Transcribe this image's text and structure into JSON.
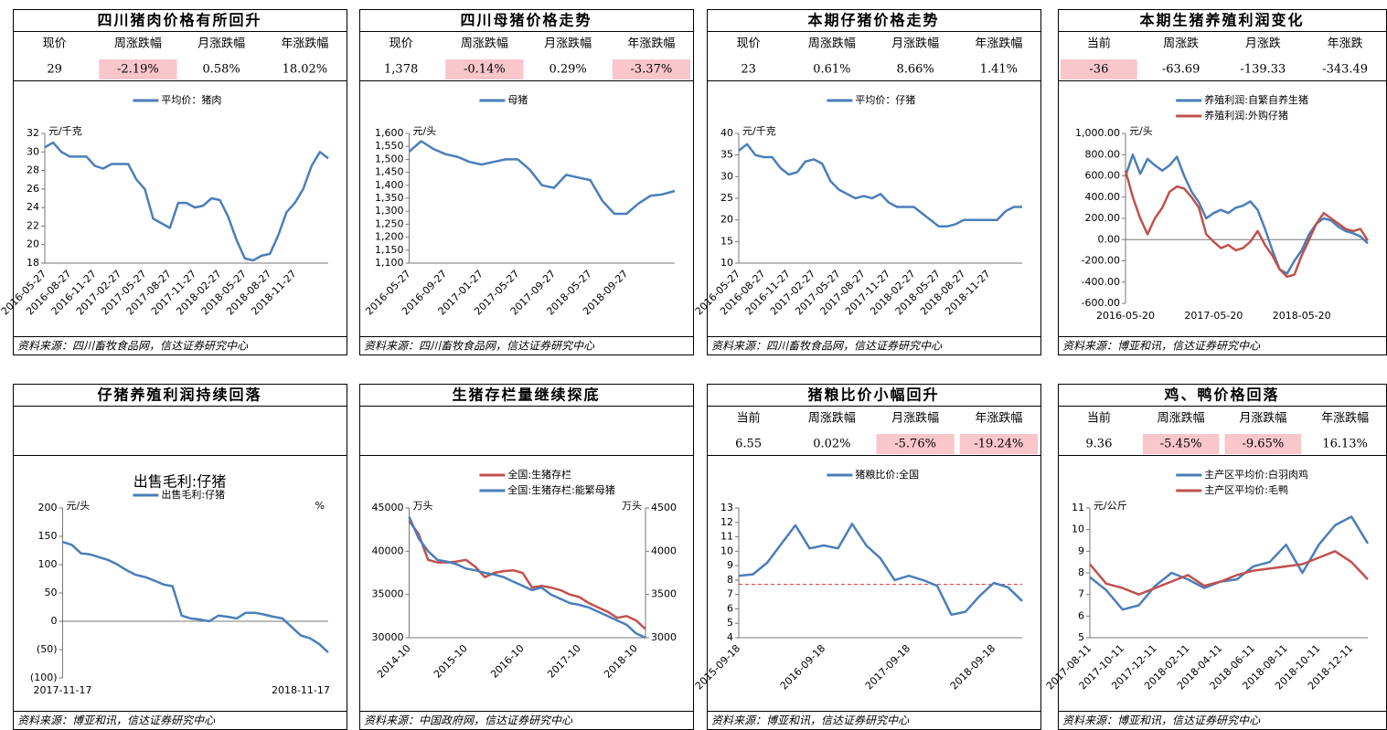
{
  "chart_data": [
    {
      "type": "line",
      "title": "四川猪肉价格有所回升",
      "stats": {
        "headers": [
          "现价",
          "周涨跌幅",
          "月涨跌幅",
          "年涨跌幅"
        ],
        "values": [
          "29",
          "-2.19%",
          "0.58%",
          "18.02%"
        ],
        "highlight": [
          false,
          true,
          false,
          false
        ]
      },
      "yunit": "元/千克",
      "categories": [
        "2016-05-27",
        null,
        null,
        "2016-08-27",
        null,
        null,
        "2016-11-27",
        null,
        null,
        "2017-02-27",
        null,
        null,
        "2017-05-27",
        null,
        null,
        "2017-08-27",
        null,
        null,
        "2017-11-27",
        null,
        null,
        "2018-02-27",
        null,
        null,
        "2018-05-27",
        null,
        null,
        "2018-08-27",
        null,
        null,
        "2018-11-27",
        null,
        null,
        null,
        null
      ],
      "series": [
        {
          "name": "平均价：猪肉",
          "color": "#4a7ebb",
          "values": [
            30.5,
            31,
            30,
            29.5,
            29.5,
            29.5,
            28.5,
            28.2,
            28.7,
            28.7,
            28.7,
            27,
            26,
            22.8,
            22.3,
            21.8,
            24.5,
            24.5,
            24,
            24.2,
            25,
            24.8,
            23,
            20.5,
            18.5,
            18.3,
            18.8,
            19,
            21,
            23.5,
            24.5,
            26,
            28.5,
            30,
            29.3
          ]
        }
      ],
      "ylim": [
        18,
        32
      ],
      "yticks": [
        18,
        20,
        22,
        24,
        26,
        28,
        30,
        32
      ],
      "source": "资料来源：四川畜牧食品网，信达证券研究中心"
    },
    {
      "type": "line",
      "title": "四川母猪价格走势",
      "stats": {
        "headers": [
          "现价",
          "周涨跌幅",
          "月涨跌幅",
          "年涨跌幅"
        ],
        "values": [
          "1,378",
          "-0.14%",
          "0.29%",
          "-3.37%"
        ],
        "highlight": [
          false,
          true,
          false,
          true
        ]
      },
      "yunit": "元/头",
      "categories": [
        "2016-05-27",
        null,
        null,
        "2016-09-27",
        null,
        null,
        "2017-01-27",
        null,
        null,
        "2017-05-27",
        null,
        null,
        "2017-09-27",
        null,
        null,
        "2018-05-27",
        null,
        null,
        "2018-09-27",
        null,
        null,
        null,
        null
      ],
      "series": [
        {
          "name": "母猪",
          "color": "#4a7ebb",
          "values": [
            1530,
            1570,
            1540,
            1520,
            1510,
            1490,
            1480,
            1490,
            1500,
            1500,
            1460,
            1400,
            1390,
            1440,
            1430,
            1420,
            1340,
            1290,
            1290,
            1330,
            1360,
            1365,
            1378
          ]
        }
      ],
      "ylim": [
        1100,
        1600
      ],
      "yticks": [
        {
          "value": 1100,
          "label": "1,100"
        },
        {
          "value": 1150,
          "label": "1,150"
        },
        {
          "value": 1200,
          "label": "1,200"
        },
        {
          "value": 1250,
          "label": "1,250"
        },
        {
          "value": 1300,
          "label": "1,300"
        },
        {
          "value": 1350,
          "label": "1,350"
        },
        {
          "value": 1400,
          "label": "1,400"
        },
        {
          "value": 1450,
          "label": "1,450"
        },
        {
          "value": 1500,
          "label": "1,500"
        },
        {
          "value": 1550,
          "label": "1,550"
        },
        {
          "value": 1600,
          "label": "1,600"
        }
      ],
      "source": "资料来源：四川畜牧食品网，信达证券研究中心"
    },
    {
      "type": "line",
      "title": "本期仔猪价格走势",
      "stats": {
        "headers": [
          "现价",
          "周涨跌幅",
          "月涨跌幅",
          "年涨跌幅"
        ],
        "values": [
          "23",
          "0.61%",
          "8.66%",
          "1.41%"
        ],
        "highlight": [
          false,
          false,
          false,
          false
        ]
      },
      "yunit": "元/千克",
      "categories": [
        "2016-05-27",
        null,
        null,
        "2016-08-27",
        null,
        null,
        "2016-11-27",
        null,
        null,
        "2017-02-27",
        null,
        null,
        "2017-05-27",
        null,
        null,
        "2017-08-27",
        null,
        null,
        "2017-11-27",
        null,
        null,
        "2018-02-27",
        null,
        null,
        "2018-05-27",
        null,
        null,
        "2018-08-27",
        null,
        null,
        "2018-11-27",
        null,
        null,
        null,
        null
      ],
      "series": [
        {
          "name": "平均价：仔猪",
          "color": "#4a7ebb",
          "values": [
            36,
            37.5,
            35,
            34.5,
            34.5,
            32,
            30.5,
            31,
            33.5,
            34,
            33,
            29,
            27,
            26,
            25,
            25.5,
            25,
            26,
            24,
            23,
            23,
            23,
            21.5,
            20,
            18.5,
            18.5,
            19,
            20,
            20,
            20,
            20,
            20,
            22,
            23,
            23
          ]
        }
      ],
      "ylim": [
        10,
        40
      ],
      "yticks": [
        10,
        15,
        20,
        25,
        30,
        35,
        40
      ],
      "source": "资料来源：四川畜牧食品网，信达证券研究中心"
    },
    {
      "type": "line",
      "title": "本期生猪养殖利润变化",
      "stats": {
        "headers": [
          "当前",
          "周涨跌",
          "月涨跌",
          "年涨跌"
        ],
        "values": [
          "-36",
          "-63.69",
          "-139.33",
          "-343.49"
        ],
        "highlight": [
          true,
          false,
          false,
          false
        ]
      },
      "yunit": "元/头",
      "zero_line": true,
      "categories": [
        "2016-05-20",
        null,
        null,
        null,
        null,
        null,
        null,
        null,
        null,
        null,
        null,
        null,
        "2017-05-20",
        null,
        null,
        null,
        null,
        null,
        null,
        null,
        null,
        null,
        null,
        null,
        "2018-05-20",
        null,
        null,
        null,
        null,
        null,
        null,
        null,
        null,
        null
      ],
      "series": [
        {
          "name": "养殖利润:自繁自养生猪",
          "color": "#4a7ebb",
          "values": [
            600,
            800,
            620,
            760,
            700,
            650,
            700,
            780,
            600,
            450,
            350,
            200,
            250,
            280,
            250,
            300,
            320,
            360,
            280,
            100,
            -100,
            -280,
            -320,
            -200,
            -100,
            50,
            150,
            200,
            180,
            120,
            80,
            60,
            30,
            -36
          ]
        },
        {
          "name": "养殖利润:外购仔猪",
          "color": "#c0504d",
          "values": [
            650,
            400,
            200,
            50,
            200,
            300,
            450,
            500,
            480,
            400,
            300,
            50,
            -20,
            -80,
            -50,
            -100,
            -80,
            -20,
            80,
            -50,
            -150,
            -280,
            -350,
            -330,
            -150,
            0,
            150,
            250,
            200,
            150,
            100,
            80,
            100,
            -10
          ]
        }
      ],
      "ylim": [
        -600,
        1000
      ],
      "yticks": [
        {
          "value": -600,
          "label": "-600.00"
        },
        {
          "value": -400,
          "label": "-400.00"
        },
        {
          "value": -200,
          "label": "-200.00"
        },
        {
          "value": 0,
          "label": "0.00"
        },
        {
          "value": 200,
          "label": "200.00"
        },
        {
          "value": 400,
          "label": "400.00"
        },
        {
          "value": 600,
          "label": "600.00"
        },
        {
          "value": 800,
          "label": "800.00"
        },
        {
          "value": 1000,
          "label": "1,000.00"
        }
      ],
      "source": "资料来源：博亚和讯，信达证券研究中心"
    },
    {
      "type": "line",
      "title": "仔猪养殖利润持续回落",
      "plot_title": "出售毛利:仔猪",
      "yunit": "元/头",
      "y2unit": "%",
      "zero_line": true,
      "categories": [
        "2017-11-17",
        null,
        null,
        null,
        null,
        null,
        null,
        null,
        null,
        null,
        null,
        null,
        null,
        null,
        null,
        null,
        null,
        null,
        null,
        null,
        null,
        null,
        null,
        null,
        null,
        null,
        "2018-11-17",
        null,
        null,
        null
      ],
      "series": [
        {
          "name": "出售毛利:仔猪",
          "color": "#4a7ebb",
          "values": [
            140,
            135,
            120,
            118,
            113,
            108,
            100,
            90,
            82,
            78,
            72,
            65,
            62,
            10,
            5,
            3,
            0,
            10,
            8,
            5,
            15,
            15,
            12,
            8,
            5,
            -10,
            -25,
            -30,
            -40,
            -55
          ]
        }
      ],
      "ylim": [
        -100,
        200
      ],
      "yticks": [
        {
          "value": -100,
          "label": "(100)"
        },
        {
          "value": -50,
          "label": "(50)"
        },
        0,
        50,
        100,
        150,
        200
      ],
      "source": "资料来源：博亚和讯，信达证券研究中心"
    },
    {
      "type": "line",
      "title": "生猪存栏量继续探底",
      "yunit": "万头",
      "y2unit": "万头",
      "categories": [
        "2014-10",
        null,
        null,
        null,
        null,
        null,
        "2015-10",
        null,
        null,
        null,
        null,
        null,
        "2016-10",
        null,
        null,
        null,
        null,
        null,
        "2017-10",
        null,
        null,
        null,
        null,
        null,
        "2018-10",
        null
      ],
      "series": [
        {
          "name": "全国:生猪存栏",
          "color": "#c0504d",
          "values": [
            43500,
            42000,
            39000,
            38700,
            38700,
            38800,
            39000,
            38200,
            37000,
            37500,
            37700,
            37800,
            37500,
            35800,
            36000,
            35800,
            35500,
            35000,
            34700,
            34000,
            33500,
            33000,
            32300,
            32500,
            32000,
            31000
          ]
        },
        {
          "name": "全国:生猪存栏:能繁母猪",
          "color": "#4a7ebb",
          "axis": "y2",
          "values": [
            4400,
            4150,
            4000,
            3900,
            3880,
            3850,
            3800,
            3780,
            3750,
            3730,
            3700,
            3650,
            3600,
            3550,
            3580,
            3500,
            3450,
            3400,
            3380,
            3350,
            3300,
            3250,
            3200,
            3150,
            3050,
            3000
          ]
        }
      ],
      "ylim": [
        30000,
        45000
      ],
      "yticks": [
        30000,
        35000,
        40000,
        45000
      ],
      "y2lim": [
        3000,
        4500
      ],
      "y2ticks": [
        3000,
        3500,
        4000,
        4500
      ],
      "source": "资料来源：中国政府网，信达证券研究中心"
    },
    {
      "type": "line",
      "title": "猪粮比价小幅回升",
      "stats": {
        "headers": [
          "当前",
          "周涨跌幅",
          "月涨跌幅",
          "年涨跌幅"
        ],
        "values": [
          "6.55",
          "0.02%",
          "-5.76%",
          "-19.24%"
        ],
        "highlight": [
          false,
          false,
          true,
          true
        ]
      },
      "categories": [
        "2015-09-18",
        null,
        null,
        null,
        null,
        null,
        "2016-09-18",
        null,
        null,
        null,
        null,
        null,
        "2017-09-18",
        null,
        null,
        null,
        null,
        null,
        "2018-09-18",
        null,
        null
      ],
      "series": [
        {
          "name": "猪粮比价:全国",
          "color": "#4a7ebb",
          "values": [
            8.3,
            8.4,
            9.2,
            10.5,
            11.8,
            10.2,
            10.4,
            10.2,
            11.9,
            10.4,
            9.5,
            8.0,
            8.3,
            8.0,
            7.6,
            5.6,
            5.8,
            6.9,
            7.8,
            7.5,
            6.55
          ]
        }
      ],
      "hline": 7.7,
      "hline_color": "#e03030",
      "ylim": [
        4,
        13
      ],
      "yticks": [
        4,
        5,
        6,
        7,
        8,
        9,
        10,
        11,
        12,
        13
      ],
      "source": "资料来源：博亚和讯，信达证券研究中心"
    },
    {
      "type": "line",
      "title": "鸡、鸭价格回落",
      "stats": {
        "headers": [
          "当前",
          "周涨跌幅",
          "月涨跌幅",
          "年涨跌幅"
        ],
        "values": [
          "9.36",
          "-5.45%",
          "-9.65%",
          "16.13%"
        ],
        "highlight": [
          false,
          true,
          true,
          false
        ]
      },
      "yunit": "元/公斤",
      "categories": [
        "2017-08-11",
        null,
        "2017-10-11",
        null,
        "2017-12-11",
        null,
        "2018-02-11",
        null,
        "2018-04-11",
        null,
        "2018-06-11",
        null,
        "2018-08-11",
        null,
        "2018-10-11",
        null,
        "2018-12-11",
        null
      ],
      "series": [
        {
          "name": "主产区平均价:白羽肉鸡",
          "color": "#4a7ebb",
          "values": [
            7.8,
            7.2,
            6.3,
            6.5,
            7.4,
            8.0,
            7.7,
            7.3,
            7.6,
            7.7,
            8.3,
            8.5,
            9.3,
            8.0,
            9.3,
            10.2,
            10.6,
            9.36
          ]
        },
        {
          "name": "主产区平均价:毛鸭",
          "color": "#c0504d",
          "values": [
            8.4,
            7.5,
            7.3,
            7.0,
            7.3,
            7.6,
            7.9,
            7.4,
            7.6,
            7.9,
            8.1,
            8.2,
            8.3,
            8.4,
            8.7,
            9.0,
            8.5,
            7.7
          ]
        }
      ],
      "ylim": [
        5,
        11
      ],
      "yticks": [
        5,
        6,
        7,
        8,
        9,
        10,
        11
      ],
      "source": "资料来源：博亚和讯，信达证券研究中心"
    }
  ]
}
